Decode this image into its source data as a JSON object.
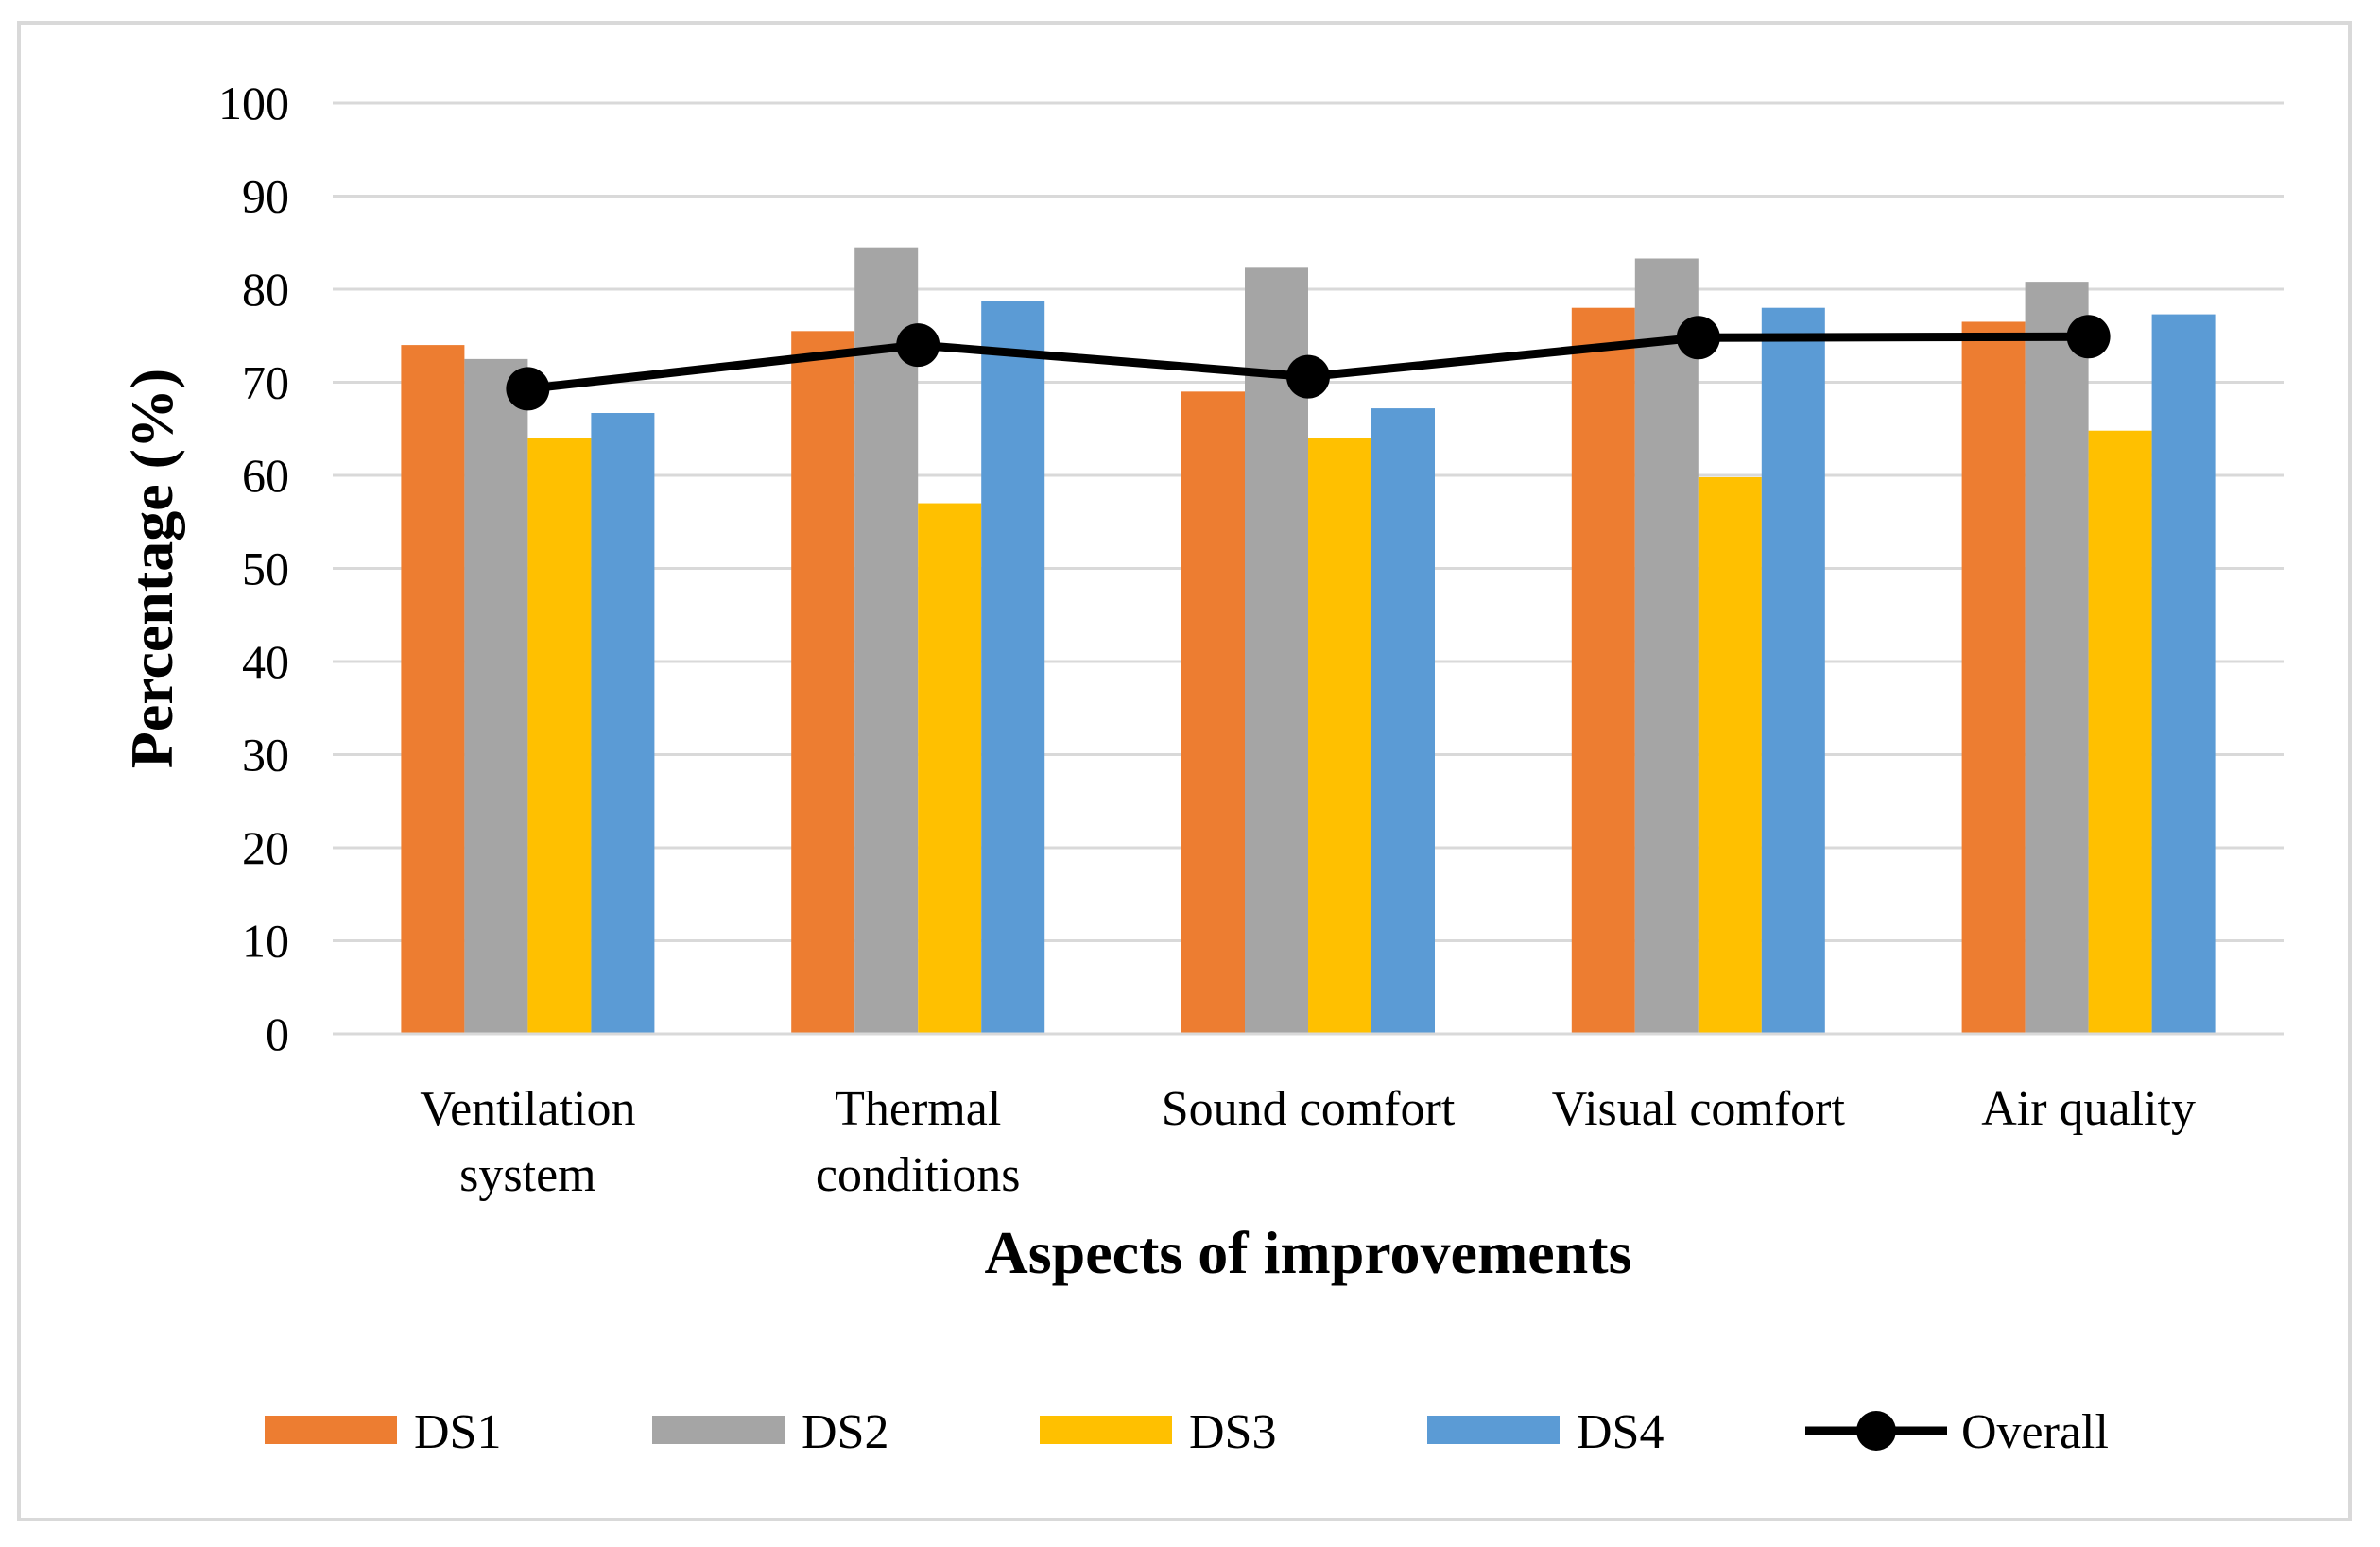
{
  "chart_data": {
    "type": "bar",
    "xlabel": "Aspects of improvements",
    "ylabel": "Percentage (%)",
    "ylim": [
      0,
      100
    ],
    "yticks": [
      "0",
      "10",
      "20",
      "30",
      "40",
      "50",
      "60",
      "70",
      "80",
      "90",
      "100"
    ],
    "grid": true,
    "legend_position": "bottom",
    "categories": [
      [
        "Ventilation",
        "system"
      ],
      [
        "Thermal",
        "conditions"
      ],
      [
        "Sound comfort"
      ],
      [
        "Visual comfort"
      ],
      [
        "Air quality"
      ]
    ],
    "series": [
      {
        "name": "DS1",
        "kind": "bar",
        "color": "#ED7D31",
        "values": [
          74.0,
          75.5,
          69.0,
          78.0,
          76.5
        ]
      },
      {
        "name": "DS2",
        "kind": "bar",
        "color": "#A5A5A5",
        "values": [
          72.5,
          84.5,
          82.3,
          83.3,
          80.8
        ]
      },
      {
        "name": "DS3",
        "kind": "bar",
        "color": "#FFC000",
        "values": [
          64.0,
          57.0,
          64.0,
          59.8,
          64.8
        ]
      },
      {
        "name": "DS4",
        "kind": "bar",
        "color": "#5B9BD5",
        "values": [
          66.7,
          78.7,
          67.2,
          78.0,
          77.3
        ]
      },
      {
        "name": "Overall",
        "kind": "line",
        "color": "#000000",
        "values": [
          69.3,
          74.0,
          70.6,
          74.8,
          74.9
        ]
      }
    ]
  }
}
